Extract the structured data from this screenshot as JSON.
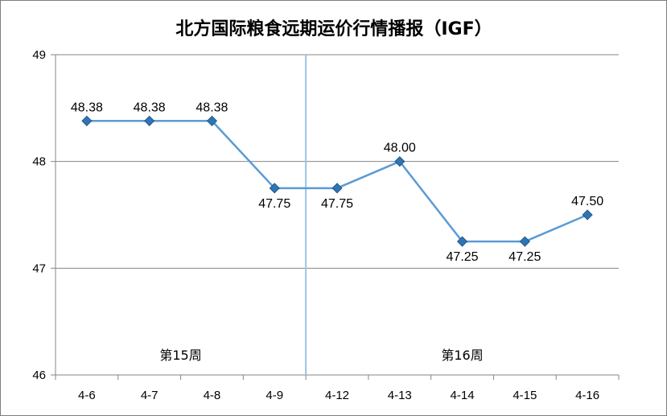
{
  "chart_data": {
    "type": "line",
    "title": "北方国际粮食远期运价行情播报（IGF）",
    "xlabel": "",
    "ylabel": "",
    "categories": [
      "4-6",
      "4-7",
      "4-8",
      "4-9",
      "4-12",
      "4-13",
      "4-14",
      "4-15",
      "4-16"
    ],
    "values": [
      48.38,
      48.38,
      48.38,
      47.75,
      47.75,
      48.0,
      47.25,
      47.25,
      47.5
    ],
    "data_labels": [
      "48.38",
      "48.38",
      "48.38",
      "47.75",
      "47.75",
      "48.00",
      "47.25",
      "47.25",
      "47.50"
    ],
    "ylim": [
      46,
      49
    ],
    "yticks": [
      46,
      47,
      48,
      49
    ],
    "grid": "horizontal",
    "legend": "none",
    "series_color": "#5b9bd5",
    "marker_color": "#2e75b6",
    "marker": "diamond",
    "week_divider_after_index": 3,
    "week_labels": [
      {
        "text": "第15周",
        "span": [
          0,
          3
        ]
      },
      {
        "text": "第16周",
        "span": [
          4,
          8
        ]
      }
    ]
  }
}
